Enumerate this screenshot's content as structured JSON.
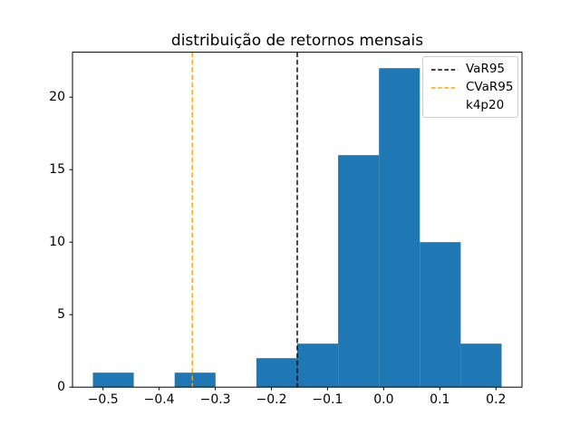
{
  "figure": {
    "background": "#ffffff"
  },
  "chart_data": {
    "type": "bar",
    "subtype": "histogram",
    "title": "distribuição de retornos mensais",
    "xlabel": "",
    "ylabel": "",
    "bar_color": "#1f77b4",
    "axis_color": "#000000",
    "grid": false,
    "bin_edges": [
      -0.518,
      -0.4452,
      -0.3724,
      -0.2996,
      -0.2268,
      -0.154,
      -0.0812,
      -0.0084,
      0.0644,
      0.1372,
      0.21
    ],
    "counts": [
      1,
      0,
      1,
      0,
      2,
      3,
      16,
      22,
      10,
      3
    ],
    "xlim": [
      -0.5544,
      0.2464
    ],
    "ylim": [
      0,
      23.1
    ],
    "x_ticks": [
      -0.5,
      -0.4,
      -0.3,
      -0.2,
      -0.1,
      0.0,
      0.1,
      0.2
    ],
    "x_tick_labels": [
      "−0.5",
      "−0.4",
      "−0.3",
      "−0.2",
      "−0.1",
      "0.0",
      "0.1",
      "0.2"
    ],
    "y_ticks": [
      0,
      5,
      10,
      15,
      20
    ],
    "y_tick_labels": [
      "0",
      "5",
      "10",
      "15",
      "20"
    ],
    "vlines": [
      {
        "label": "VaR95",
        "x": -0.154,
        "color": "#000000",
        "linestyle": "dashed"
      },
      {
        "label": "CVaR95",
        "x": -0.341,
        "color": "#ffa500",
        "linestyle": "dashed"
      }
    ],
    "legend": {
      "location": "upper right",
      "entries": [
        {
          "label": "VaR95",
          "color": "#000000",
          "linestyle": "dashed"
        },
        {
          "label": "CVaR95",
          "color": "#ffa500",
          "linestyle": "dashed"
        },
        {
          "label": "k4p20",
          "color": null,
          "linestyle": "none"
        }
      ]
    }
  }
}
